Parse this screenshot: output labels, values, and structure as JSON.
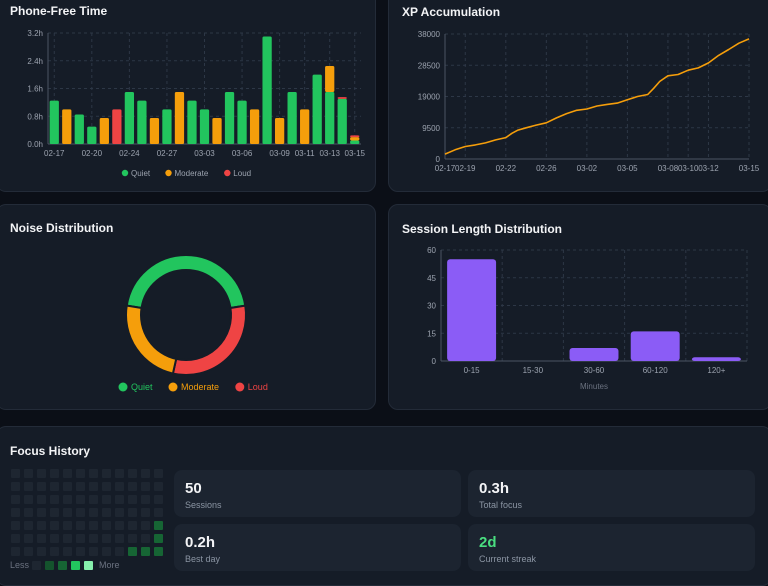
{
  "colors": {
    "quiet": "#22c55e",
    "moderate": "#f59e0b",
    "loud": "#ef4444",
    "xp_line": "#f59e0b",
    "bars": "#8b5cf6",
    "streak": "#4ade80"
  },
  "phone_free": {
    "title": "Phone-Free Time",
    "legend": [
      "Quiet",
      "Moderate",
      "Loud"
    ]
  },
  "xp": {
    "title": "XP Accumulation"
  },
  "noise": {
    "title": "Noise Distribution",
    "legend": [
      "Quiet",
      "Moderate",
      "Loud"
    ]
  },
  "session": {
    "title": "Session Length Distribution",
    "xlabel": "Minutes"
  },
  "focus": {
    "title": "Focus History",
    "legend_less": "Less",
    "legend_more": "More",
    "stats": [
      {
        "value": "50",
        "label": "Sessions"
      },
      {
        "value": "0.3h",
        "label": "Total focus"
      },
      {
        "value": "0.2h",
        "label": "Best day"
      },
      {
        "value": "2d",
        "label": "Current streak"
      }
    ],
    "heatmap_active": [
      [
        5,
        11
      ],
      [
        6,
        11
      ],
      [
        6,
        10
      ],
      [
        6,
        9
      ],
      [
        4,
        11
      ]
    ]
  },
  "chart_data": [
    {
      "type": "bar",
      "title": "Phone-Free Time",
      "ytick_labels": [
        "0.0h",
        "0.8h",
        "1.6h",
        "2.4h",
        "3.2h"
      ],
      "ylim": [
        0,
        3.2
      ],
      "xtick_labels": [
        "02-17",
        "02-20",
        "02-24",
        "02-27",
        "03-03",
        "03-06",
        "03-09",
        "03-11",
        "03-13",
        "03-15"
      ],
      "xtick_index": [
        0,
        3,
        6,
        9,
        12,
        15,
        18,
        20,
        22,
        24
      ],
      "legend_placement": "bottom",
      "series": [
        {
          "name": "Quiet",
          "values": [
            1.25,
            0,
            0.85,
            0.5,
            0,
            0,
            1.5,
            1.25,
            0,
            1.0,
            0,
            1.25,
            1.0,
            0,
            1.5,
            1.25,
            0,
            3.1,
            0,
            1.5,
            0,
            2.0,
            1.5,
            1.3,
            0.1
          ]
        },
        {
          "name": "Moderate",
          "values": [
            0,
            1.0,
            0,
            0,
            0.75,
            0,
            0,
            0,
            0.75,
            0,
            1.5,
            0,
            0,
            0.75,
            0,
            0,
            1.0,
            0,
            0.75,
            0,
            1.0,
            0,
            0.75,
            0,
            0.1
          ]
        },
        {
          "name": "Loud",
          "values": [
            0,
            0,
            0,
            0,
            0,
            1.0,
            0,
            0,
            0,
            0,
            0,
            0,
            0,
            0,
            0,
            0,
            0,
            0,
            0,
            0,
            0,
            0,
            0,
            0.05,
            0.05
          ]
        }
      ]
    },
    {
      "type": "line",
      "title": "XP Accumulation",
      "ytick_values": [
        0,
        9500,
        19000,
        28500,
        38000
      ],
      "ylim": [
        0,
        38000
      ],
      "xtick_labels": [
        "02-17",
        "02-19",
        "02-22",
        "02-26",
        "03-02",
        "03-05",
        "03-08",
        "03-10",
        "03-12",
        "03-15"
      ],
      "xtick_index": [
        0,
        1,
        3,
        5,
        7,
        9,
        11,
        12,
        13,
        15
      ],
      "x_range": [
        0,
        15
      ],
      "series": [
        {
          "name": "XP",
          "points": [
            [
              0,
              1500
            ],
            [
              0.5,
              2800
            ],
            [
              1,
              3800
            ],
            [
              1.5,
              4300
            ],
            [
              2,
              4900
            ],
            [
              2.5,
              5800
            ],
            [
              3,
              6500
            ],
            [
              3.3,
              7800
            ],
            [
              3.6,
              8800
            ],
            [
              4,
              9500
            ],
            [
              4.5,
              10300
            ],
            [
              5,
              11000
            ],
            [
              5.5,
              12500
            ],
            [
              6,
              13800
            ],
            [
              6.5,
              14800
            ],
            [
              7,
              15200
            ],
            [
              7.5,
              16100
            ],
            [
              8,
              16600
            ],
            [
              8.5,
              17000
            ],
            [
              9,
              18000
            ],
            [
              9.5,
              19000
            ],
            [
              10,
              19600
            ],
            [
              10.3,
              21500
            ],
            [
              10.6,
              23600
            ],
            [
              11,
              25300
            ],
            [
              11.5,
              25700
            ],
            [
              12,
              27000
            ],
            [
              12.5,
              27700
            ],
            [
              13,
              29200
            ],
            [
              13.5,
              31500
            ],
            [
              14,
              33300
            ],
            [
              14.5,
              35200
            ],
            [
              15,
              36500
            ]
          ]
        }
      ]
    },
    {
      "type": "pie",
      "title": "Noise Distribution",
      "donut": true,
      "legend_placement": "bottom",
      "slices": [
        {
          "name": "Quiet",
          "value": 45
        },
        {
          "name": "Loud",
          "value": 31
        },
        {
          "name": "Moderate",
          "value": 24
        }
      ]
    },
    {
      "type": "bar",
      "title": "Session Length Distribution",
      "categories": [
        "0-15",
        "15-30",
        "30-60",
        "60-120",
        "120+"
      ],
      "values": [
        55,
        0,
        7,
        16,
        2
      ],
      "ytick_values": [
        0,
        15,
        30,
        45,
        60
      ],
      "ylim": [
        0,
        60
      ],
      "xlabel": "Minutes"
    }
  ]
}
